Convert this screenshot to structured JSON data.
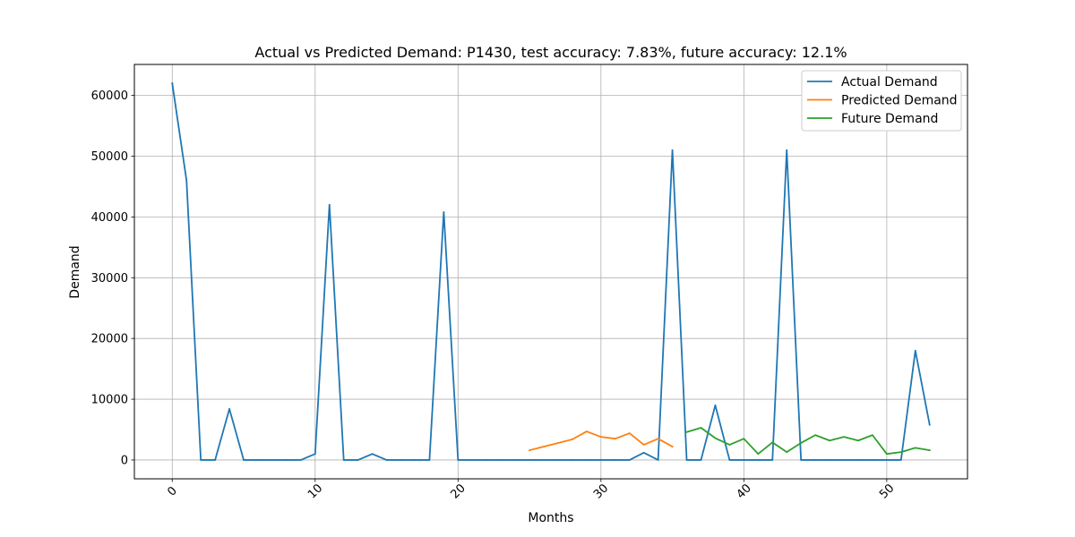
{
  "chart_data": {
    "type": "line",
    "title": "Actual vs Predicted Demand: P1430, test accuracy: 7.83%, future accuracy: 12.1%",
    "xlabel": "Months",
    "ylabel": "Demand",
    "xlim": [
      -2.65,
      55.65
    ],
    "ylim": [
      -3100,
      65100
    ],
    "xticks": [
      0,
      10,
      20,
      30,
      40,
      50
    ],
    "yticks": [
      0,
      10000,
      20000,
      30000,
      40000,
      50000,
      60000
    ],
    "grid": true,
    "legend_position": "upper right",
    "series": [
      {
        "name": "Actual Demand",
        "color": "#1f77b4",
        "x": [
          0,
          1,
          2,
          3,
          4,
          5,
          6,
          7,
          8,
          9,
          10,
          11,
          12,
          13,
          14,
          15,
          16,
          17,
          18,
          19,
          20,
          21,
          22,
          23,
          24,
          25,
          26,
          27,
          28,
          29,
          30,
          31,
          32,
          33,
          34,
          35,
          36,
          37,
          38,
          39,
          40,
          41,
          42,
          43,
          44,
          45,
          46,
          47,
          48,
          49,
          50,
          51,
          52,
          53
        ],
        "y": [
          62000,
          46000,
          0,
          0,
          8400,
          0,
          0,
          0,
          0,
          0,
          1000,
          42000,
          0,
          0,
          1000,
          0,
          0,
          0,
          0,
          40800,
          0,
          0,
          0,
          0,
          0,
          0,
          0,
          0,
          0,
          0,
          0,
          0,
          0,
          1200,
          0,
          51000,
          0,
          0,
          9000,
          0,
          0,
          0,
          0,
          51000,
          0,
          0,
          0,
          0,
          0,
          0,
          0,
          0,
          18000,
          5800
        ]
      },
      {
        "name": "Predicted Demand",
        "color": "#ff7f0e",
        "x": [
          25,
          26,
          27,
          28,
          29,
          30,
          31,
          32,
          33,
          34,
          35
        ],
        "y": [
          1600,
          2200,
          2800,
          3400,
          4700,
          3800,
          3500,
          4400,
          2500,
          3500,
          2200
        ]
      },
      {
        "name": "Future Demand",
        "color": "#2ca02c",
        "x": [
          36,
          37,
          38,
          39,
          40,
          41,
          42,
          43,
          44,
          45,
          46,
          47,
          48,
          49,
          50,
          51,
          52,
          53
        ],
        "y": [
          4600,
          5300,
          3600,
          2500,
          3500,
          1000,
          2900,
          1300,
          2800,
          4100,
          3200,
          3800,
          3200,
          4100,
          1000,
          1300,
          2000,
          1600
        ]
      }
    ]
  }
}
